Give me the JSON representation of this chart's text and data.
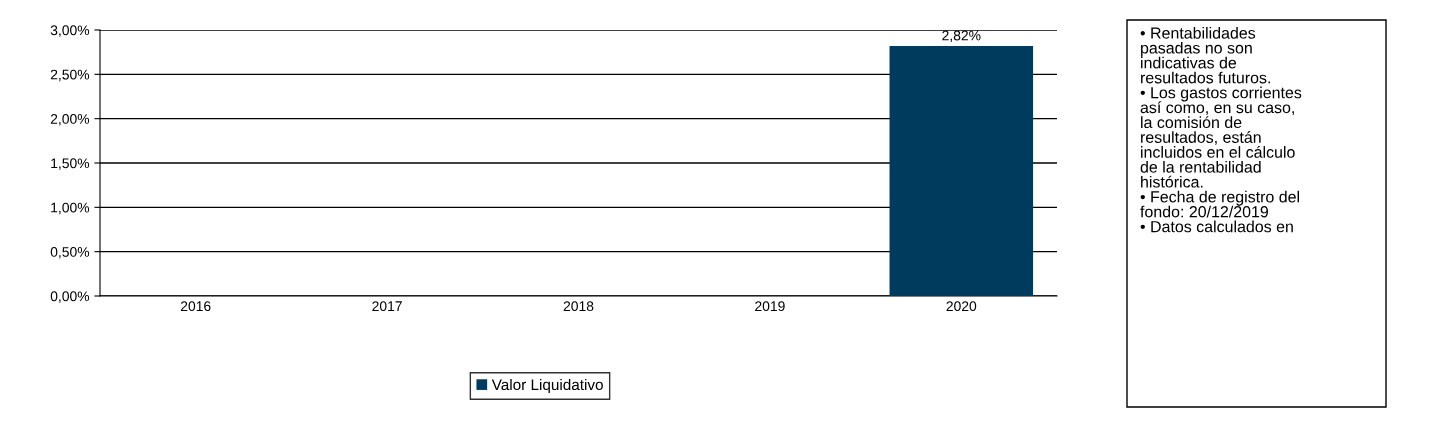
{
  "chart_data": {
    "type": "bar",
    "categories": [
      "2016",
      "2017",
      "2018",
      "2019",
      "2020"
    ],
    "series": [
      {
        "name": "Valor Liquidativo",
        "color": "#003a5c",
        "values": [
          null,
          null,
          null,
          null,
          2.82
        ],
        "value_labels": [
          null,
          null,
          null,
          null,
          "2,82%"
        ]
      }
    ],
    "ylim": [
      0,
      3
    ],
    "yticks": [
      {
        "value": 0,
        "label": "0,00%"
      },
      {
        "value": 0.5,
        "label": "0,50%"
      },
      {
        "value": 1,
        "label": "1,00%"
      },
      {
        "value": 1.5,
        "label": "1,50%"
      },
      {
        "value": 2,
        "label": "2,00%"
      },
      {
        "value": 2.5,
        "label": "2,50%"
      },
      {
        "value": 3,
        "label": "3,00%"
      }
    ],
    "grid": "y",
    "legend": "bottom",
    "annotations": [
      "• Rentabilidades\npasadas no son\nindicativas de\nresultados futuros.\n• Los gastos corrientes\nasí como, en su caso,\nla comisión de\nresultados, están\nincluidos en el cálculo\nde la rentabilidad\nhistórica.\n• Fecha de registro del\nfondo: 20/12/2019\n• Datos calculados en"
    ]
  }
}
